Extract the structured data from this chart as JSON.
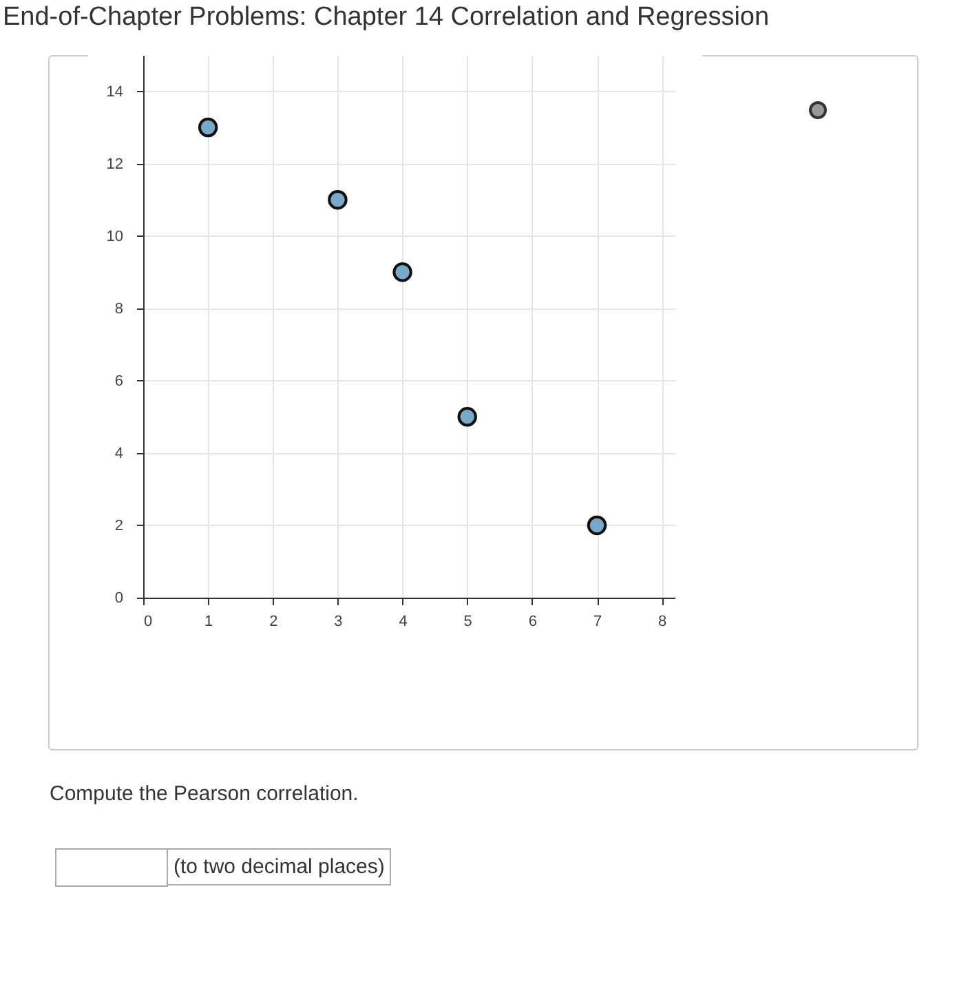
{
  "chart_data": {
    "type": "scatter",
    "title": "End-of-Chapter Problems: Chapter 14 Correlation and Regression",
    "x": [
      1,
      3,
      4,
      5,
      7
    ],
    "values": [
      13,
      11,
      9,
      5,
      2
    ],
    "color": "#78a9c9",
    "marker": "circle",
    "xlim": [
      0,
      8.2
    ],
    "ylim": [
      0,
      15
    ],
    "xticks": [
      0,
      1,
      2,
      3,
      4,
      5,
      6,
      7,
      8
    ],
    "yticks": [
      0,
      2,
      4,
      6,
      8,
      10,
      12,
      14
    ],
    "grid": true,
    "annotations": [
      "Compute the Pearson correlation.",
      "(to two decimal places)"
    ]
  }
}
